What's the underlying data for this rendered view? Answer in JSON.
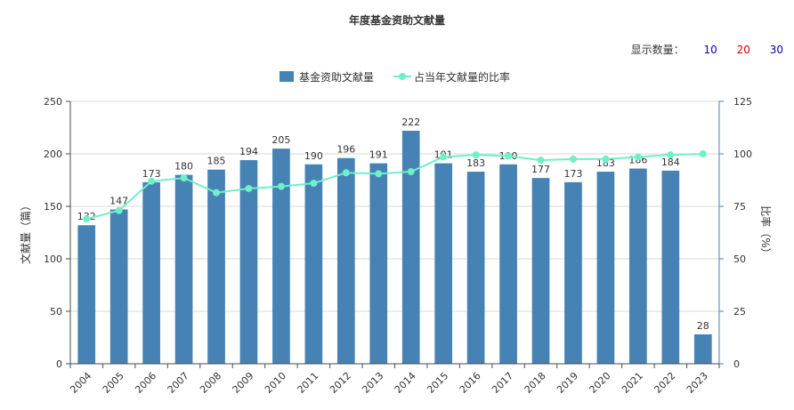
{
  "header": {
    "title": "年度基金资助文献量",
    "count_label": "显示数量：",
    "count_options": [
      {
        "label": "10",
        "color": "#0000cc"
      },
      {
        "label": "20",
        "color": "#cc0000"
      },
      {
        "label": "30",
        "color": "#0000aa"
      }
    ]
  },
  "colors": {
    "bar": "#4682b4",
    "line": "#6ef0c8",
    "axis_left": "#4a4a4a",
    "axis_right": "#4682b4",
    "grid": "#d9d9d9"
  },
  "chart_data": {
    "type": "bar",
    "title": "年度基金资助文献量",
    "categories": [
      "2004",
      "2005",
      "2006",
      "2007",
      "2008",
      "2009",
      "2010",
      "2011",
      "2012",
      "2013",
      "2014",
      "2015",
      "2016",
      "2017",
      "2018",
      "2019",
      "2020",
      "2021",
      "2022",
      "2023"
    ],
    "series": [
      {
        "name": "基金资助文献量",
        "type": "bar",
        "axis": "left",
        "values": [
          132,
          147,
          173,
          180,
          185,
          194,
          205,
          190,
          196,
          191,
          222,
          191,
          183,
          190,
          177,
          173,
          183,
          186,
          184,
          28
        ]
      },
      {
        "name": "占当年文献量的比率",
        "type": "line",
        "axis": "right",
        "values": [
          69,
          73,
          87,
          88.5,
          81.5,
          83.5,
          84.5,
          86,
          91,
          90.5,
          91.5,
          98.5,
          99.5,
          99,
          97,
          97.5,
          97.5,
          98.5,
          99.5,
          100
        ]
      }
    ],
    "ylabel": "文献量（篇）",
    "ylabel_right": "比率（%）",
    "ylim": [
      0,
      250
    ],
    "yticks": [
      0,
      50,
      100,
      150,
      200,
      250
    ],
    "ylim_right": [
      0,
      125
    ],
    "yticks_right": [
      0,
      25,
      50,
      75,
      100,
      125
    ],
    "grid": true,
    "legend_position": "top-center"
  }
}
